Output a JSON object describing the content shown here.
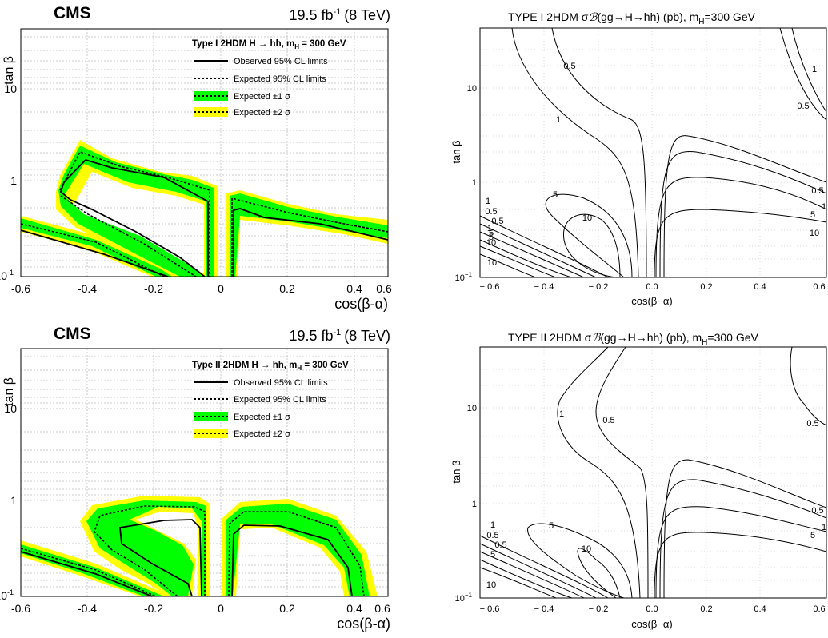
{
  "panels": [
    {
      "id": "tl",
      "type": "contour",
      "experiment": "CMS",
      "lumi": "19.5 fb",
      "lumi_sup": "-1",
      "energy": "(8 TeV)",
      "legend_title": "Type I 2HDM H → hh, m",
      "legend_title_sub": "H",
      "legend_title_tail": " = 300 GeV",
      "legend_entries": [
        "Observed 95% CL limits",
        "Expected 95% CL limits",
        "Expected ±1 σ",
        "Expected ±2 σ"
      ],
      "xlabel": "cos(β-α)",
      "ylabel": "tan β",
      "xlim": [
        -0.6,
        0.6
      ],
      "ylim": [
        0.1,
        40
      ],
      "yscale": "log",
      "xticks": [
        "-0.6",
        "-0.4",
        "-0.2",
        "0",
        "0.2",
        "0.4",
        "0.6"
      ],
      "yticks": [
        "10",
        "1"
      ],
      "ytick_min_base": "10",
      "ytick_min_exp": "-1",
      "colors": {
        "one_sigma": "#00ff00",
        "two_sigma": "#ffff00",
        "observed": "#000000"
      }
    },
    {
      "id": "bl",
      "type": "contour",
      "experiment": "CMS",
      "lumi": "19.5 fb",
      "lumi_sup": "-1",
      "energy": "(8 TeV)",
      "legend_title": "Type II 2HDM H → hh, m",
      "legend_title_sub": "H",
      "legend_title_tail": " = 300 GeV",
      "legend_entries": [
        "Observed 95% CL limits",
        "Expected 95% CL limits",
        "Expected ±1 σ",
        "Expected ±2 σ"
      ],
      "xlabel": "cos(β-α)",
      "ylabel": "tan β",
      "xlim": [
        -0.6,
        0.6
      ],
      "ylim": [
        0.1,
        40
      ],
      "yscale": "log",
      "xticks": [
        "-0.6",
        "-0.4",
        "-0.2",
        "0",
        "0.2",
        "0.4",
        "0.6"
      ],
      "yticks": [
        "10",
        "1"
      ],
      "ytick_min_base": "10",
      "ytick_min_exp": "-1"
    },
    {
      "id": "tr",
      "type": "contour",
      "title_pre": "TYPE I 2HDM   σ",
      "title_b": "ℬ",
      "title_mid": "(gg→H→hh) (pb), m",
      "title_sub": "H",
      "title_tail": "=300 GeV",
      "xlabel": "cos(β−α)",
      "ylabel": "tan β",
      "xticks": [
        "− 0.6",
        "− 0.4",
        "− 0.2",
        "0.0",
        "0.2",
        "0.4",
        "0.6"
      ],
      "yticks": [
        "10",
        "1"
      ],
      "ytick_min_base": "10",
      "ytick_min_exp": "−1",
      "contour_labels": [
        "0.5",
        "1",
        "1",
        "0.5",
        "5",
        "10",
        "1",
        "0.5",
        "0.5",
        "5",
        "10",
        "1",
        "5",
        "10",
        "0.5",
        "1",
        "5",
        "10"
      ]
    },
    {
      "id": "br",
      "type": "contour",
      "title_pre": "TYPE II 2HDM   σ",
      "title_b": "ℬ",
      "title_mid": "(gg→H→hh) (pb), m",
      "title_sub": "H",
      "title_tail": "=300 GeV",
      "xlabel": "cos(β−α)",
      "ylabel": "tan β",
      "xticks": [
        "− 0.6",
        "− 0.4",
        "− 0.2",
        "0.0",
        "0.2",
        "0.4",
        "0.6"
      ],
      "yticks": [
        "10",
        "1"
      ],
      "ytick_min_base": "10",
      "ytick_min_exp": "−1",
      "contour_labels": [
        "1",
        "0.5",
        "0.5",
        "5",
        "10",
        "0.5",
        "5",
        "1",
        "1",
        "0.5",
        "0.5",
        "5",
        "10"
      ]
    }
  ],
  "chart_data": [
    {
      "type": "contour",
      "title": "Type I 2HDM H → hh, m_H = 300 GeV",
      "xlabel": "cos(β-α)",
      "ylabel": "tan β",
      "xlim": [
        -0.6,
        0.6
      ],
      "ylim": [
        0.1,
        40
      ],
      "yscale": "log",
      "series": [
        {
          "name": "Observed 95% CL limits",
          "x": [
            -0.06,
            -0.06,
            -0.2,
            -0.42,
            -0.5,
            -0.56,
            -0.58,
            -0.56,
            -0.5,
            -0.42,
            -0.3,
            -0.18,
            -0.05
          ],
          "y": [
            0.1,
            0.6,
            0.78,
            1.2,
            1.5,
            1.2,
            0.75,
            0.55,
            0.42,
            0.35,
            0.25,
            0.16,
            0.1
          ]
        },
        {
          "name": "Observed 95% CL limits",
          "x": [
            0.05,
            0.06,
            0.1,
            0.2,
            0.4,
            0.6
          ],
          "y": [
            0.1,
            0.5,
            0.52,
            0.45,
            0.32,
            0.23
          ]
        },
        {
          "name": "Observed 95% CL limits",
          "x": [
            -0.6,
            -0.4,
            -0.2,
            -0.1
          ],
          "y": [
            0.28,
            0.2,
            0.12,
            0.1
          ]
        }
      ]
    },
    {
      "type": "contour",
      "title": "Type II 2HDM H → hh, m_H = 300 GeV",
      "xlabel": "cos(β-α)",
      "ylabel": "tan β",
      "xlim": [
        -0.6,
        0.6
      ],
      "ylim": [
        0.1,
        40
      ],
      "yscale": "log",
      "series": [
        {
          "name": "Observed 95% CL limits",
          "x": [
            -0.07,
            -0.08,
            -0.12,
            -0.2,
            -0.35,
            -0.37,
            -0.3,
            -0.2,
            -0.13,
            -0.07
          ],
          "y": [
            0.1,
            0.4,
            0.6,
            0.63,
            0.52,
            0.42,
            0.28,
            0.2,
            0.14,
            0.1
          ]
        },
        {
          "name": "Observed 95% CL limits",
          "x": [
            0.02,
            0.03,
            0.05,
            0.12,
            0.3,
            0.42,
            0.45,
            0.45
          ],
          "y": [
            0.1,
            0.35,
            0.55,
            0.6,
            0.5,
            0.3,
            0.15,
            0.1
          ]
        },
        {
          "name": "Observed 95% CL limits",
          "x": [
            -0.6,
            -0.4,
            -0.2
          ],
          "y": [
            0.27,
            0.18,
            0.1
          ]
        }
      ]
    },
    {
      "type": "contour",
      "title": "TYPE I 2HDM σℬ(gg→H→hh) (pb), m_H=300 GeV",
      "xlabel": "cos(β−α)",
      "ylabel": "tan β",
      "xlim": [
        -0.6,
        0.6
      ],
      "ylim": [
        0.1,
        40
      ],
      "yscale": "log",
      "contour_levels": [
        0.5,
        1,
        5,
        10
      ]
    },
    {
      "type": "contour",
      "title": "TYPE II 2HDM σℬ(gg→H→hh) (pb), m_H=300 GeV",
      "xlabel": "cos(β−α)",
      "ylabel": "tan β",
      "xlim": [
        -0.6,
        0.6
      ],
      "ylim": [
        0.1,
        40
      ],
      "yscale": "log",
      "contour_levels": [
        0.5,
        1,
        5,
        10
      ]
    }
  ]
}
